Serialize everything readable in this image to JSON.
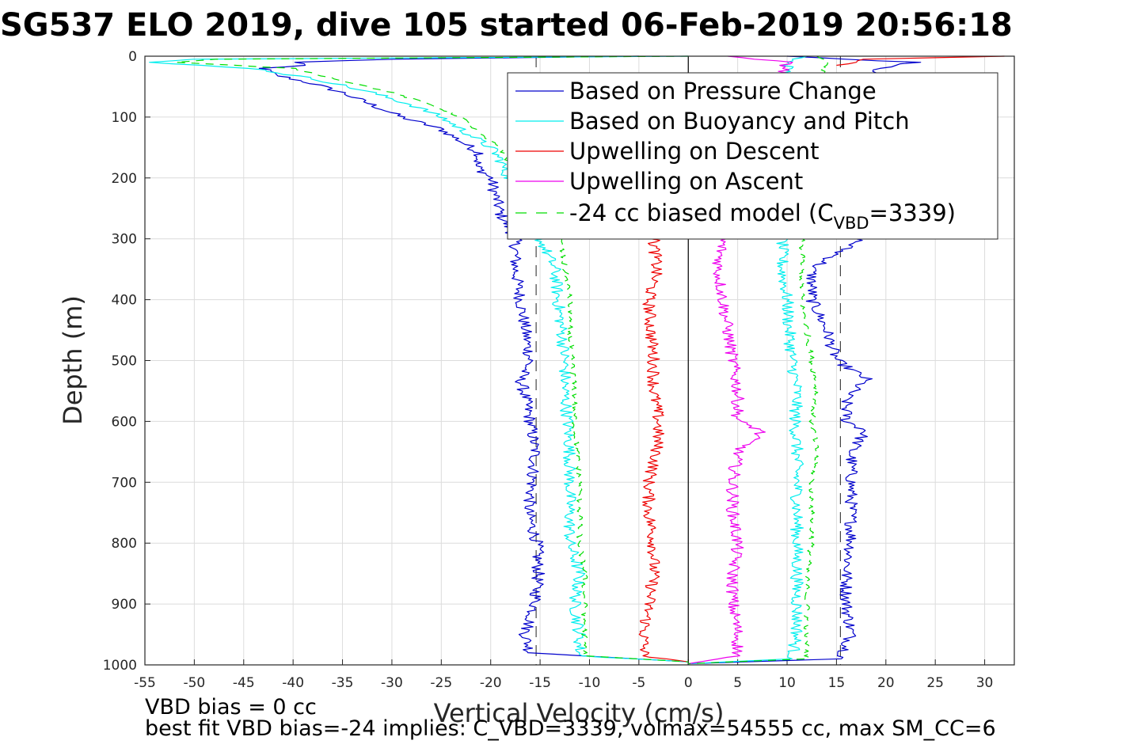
{
  "chart_data": {
    "type": "line",
    "title": "SG537 ELO 2019, dive 105 started 06-Feb-2019 20:56:18",
    "xlabel": "Vertical Velocity (cm/s)",
    "ylabel": "Depth (m)",
    "xlim": [
      -55,
      33
    ],
    "ylim": [
      0,
      1000
    ],
    "y_reversed": true,
    "grid": true,
    "legend_position": "top-right",
    "xticks": [
      -55,
      -50,
      -45,
      -40,
      -35,
      -30,
      -25,
      -20,
      -15,
      -10,
      -5,
      0,
      5,
      10,
      15,
      20,
      25,
      30
    ],
    "yticks": [
      0,
      100,
      200,
      300,
      400,
      500,
      600,
      700,
      800,
      900,
      1000
    ],
    "reference_lines": {
      "zero": 0,
      "target_descent": -15.4,
      "target_ascent": 15.4
    },
    "series": [
      {
        "name": "Based on Pressure Change",
        "color": "#0000cc",
        "style": "solid",
        "profiles": [
          {
            "depth": [
              0,
              5,
              10,
              15,
              20,
              30,
              45,
              60,
              80,
              100,
              120,
              140,
              160,
              180,
              200,
              230,
              260,
              300,
              350,
              400,
              450,
              500,
              530,
              560,
              600,
              650,
              700,
              750,
              800,
              850,
              900,
              950,
              980,
              995
            ],
            "x": [
              -5,
              -30,
              -40,
              -39,
              -43,
              -42,
              -38,
              -35,
              -32,
              -29,
              -25,
              -23,
              -21,
              -21.5,
              -20,
              -19.5,
              -19,
              -17.5,
              -17.5,
              -17,
              -16.5,
              -16,
              -17,
              -16.5,
              -16,
              -15.5,
              -15.8,
              -16.2,
              -15.3,
              -15.2,
              -15.5,
              -16.5,
              -16,
              0
            ]
          },
          {
            "depth": [
              0,
              10,
              20,
              40,
              100,
              200,
              300,
              350,
              400,
              450,
              500,
              530,
              560,
              600,
              615,
              650,
              700,
              750,
              800,
              850,
              900,
              950,
              990,
              998
            ],
            "x": [
              10,
              23,
              19,
              20,
              20,
              19,
              17.5,
              12.5,
              12.5,
              14,
              15,
              18,
              16,
              16,
              18,
              16.5,
              16.5,
              16.5,
              16.5,
              16,
              16,
              16.5,
              15.5,
              0
            ]
          }
        ]
      },
      {
        "name": "Based on Buoyancy and Pitch",
        "color": "#00eeee",
        "style": "solid",
        "profiles": [
          {
            "depth": [
              0,
              5,
              10,
              20,
              40,
              60,
              80,
              100,
              130,
              150,
              170,
              190,
              220,
              260,
              300,
              350,
              400,
              450,
              500,
              550,
              600,
              650,
              700,
              750,
              800,
              850,
              900,
              950,
              985,
              995
            ],
            "x": [
              0,
              -50,
              -55,
              -44,
              -37,
              -32,
              -28,
              -25,
              -22,
              -20,
              -19,
              -18.5,
              -17.5,
              -16.5,
              -15,
              -13.5,
              -13.2,
              -12.8,
              -12.5,
              -12.5,
              -12.2,
              -12,
              -12,
              -12,
              -12,
              -11,
              -11.5,
              -11,
              -11,
              0
            ]
          },
          {
            "depth": [
              0,
              10,
              100,
              300,
              350,
              400,
              450,
              500,
              550,
              600,
              650,
              700,
              750,
              800,
              850,
              900,
              950,
              990,
              998
            ],
            "x": [
              12,
              10,
              11,
              9.5,
              9.5,
              10,
              10.2,
              10.5,
              11,
              10.8,
              11,
              11,
              11,
              11,
              11,
              11,
              11,
              10.5,
              0
            ]
          }
        ]
      },
      {
        "name": "Upwelling on Descent",
        "color": "#ee0000",
        "style": "solid",
        "profiles": [
          {
            "depth": [
              300,
              350,
              400,
              450,
              500,
              550,
              600,
              650,
              700,
              750,
              800,
              850,
              900,
              950,
              985,
              995
            ],
            "x": [
              -3.5,
              -3.2,
              -4,
              -3.8,
              -3.5,
              -3.5,
              -3,
              -3.2,
              -4,
              -4,
              -3.5,
              -3.5,
              -4,
              -4.5,
              -4.5,
              0
            ]
          },
          {
            "depth": [
              0,
              5,
              15
            ],
            "x": [
              32,
              18,
              15
            ]
          }
        ]
      },
      {
        "name": "Upwelling on Ascent",
        "color": "#ee00ee",
        "style": "solid",
        "profiles": [
          {
            "depth": [
              0,
              10,
              300,
              350,
              400,
              450,
              500,
              550,
              600,
              615,
              650,
              700,
              750,
              800,
              850,
              900,
              950,
              985,
              998
            ],
            "x": [
              4,
              10,
              3.5,
              3,
              3.5,
              4,
              4.5,
              5,
              5,
              7.5,
              5,
              4.5,
              4.5,
              5,
              4.5,
              4.5,
              5,
              5,
              0
            ]
          }
        ]
      },
      {
        "name": "-24 cc biased model (C_VBD=3339)",
        "color": "#00dd00",
        "style": "dashed",
        "profiles": [
          {
            "depth": [
              0,
              5,
              10,
              20,
              40,
              60,
              80,
              100,
              130,
              150,
              180,
              220,
              260,
              300,
              350,
              400,
              450,
              500,
              550,
              600,
              650,
              700,
              750,
              800,
              850,
              900,
              950,
              985,
              995
            ],
            "x": [
              0,
              -48,
              -52,
              -40,
              -35,
              -30,
              -26,
              -23,
              -21,
              -19,
              -18,
              -17,
              -16,
              -13,
              -12.5,
              -12,
              -12,
              -11.8,
              -11.5,
              -11.5,
              -11.3,
              -11,
              -11,
              -11,
              -10.5,
              -10.5,
              -10.5,
              -10.5,
              0
            ]
          },
          {
            "depth": [
              0,
              10,
              100,
              300,
              350,
              400,
              450,
              500,
              550,
              600,
              650,
              700,
              750,
              800,
              850,
              900,
              950,
              990,
              998
            ],
            "x": [
              13,
              14,
              12,
              11.5,
              11.5,
              11.5,
              12,
              12.5,
              13,
              12.5,
              13,
              12.5,
              12.5,
              12.5,
              12,
              12,
              12,
              12,
              0
            ]
          }
        ]
      }
    ],
    "legend_entries": [
      {
        "label": "Based on Pressure Change",
        "color": "#0000cc",
        "style": "solid"
      },
      {
        "label": "Based on Buoyancy and Pitch",
        "color": "#00eeee",
        "style": "solid"
      },
      {
        "label": "Upwelling on Descent",
        "color": "#ee0000",
        "style": "solid"
      },
      {
        "label": "Upwelling on Ascent",
        "color": "#ee00ee",
        "style": "solid"
      },
      {
        "label_prefix": "-24 cc biased model (C",
        "label_sub": "VBD",
        "label_suffix": "=3339)",
        "color": "#00dd00",
        "style": "dashed"
      }
    ],
    "annotations": [
      "VBD bias = 0 cc",
      "best fit VBD bias=-24 implies: C_VBD=3339, volmax=54555 cc, max SM_CC=6"
    ]
  }
}
